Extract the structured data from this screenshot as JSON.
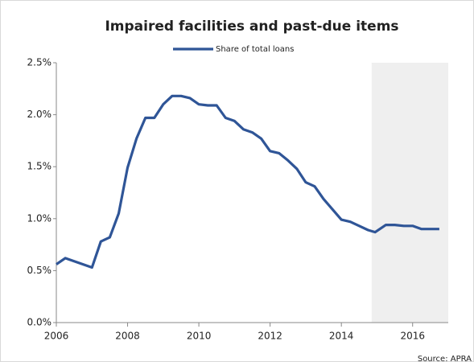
{
  "chart_data": {
    "type": "line",
    "title": "Impaired facilities and past-due items",
    "source": "Source: APRA",
    "x": [
      2006,
      2006.25,
      2007,
      2007.25,
      2007.5,
      2007.75,
      2008,
      2008.25,
      2008.5,
      2008.75,
      2009,
      2009.25,
      2009.5,
      2009.75,
      2010,
      2010.25,
      2010.5,
      2010.75,
      2011,
      2011.25,
      2011.5,
      2011.75,
      2012,
      2012.25,
      2012.5,
      2012.75,
      2013,
      2013.25,
      2013.5,
      2013.75,
      2014,
      2014.25,
      2014.5,
      2014.75,
      2014.95,
      2015.25,
      2015.5,
      2015.75,
      2016,
      2016.25,
      2016.75
    ],
    "series": [
      {
        "name": "Share of total loans",
        "color": "#2f5597",
        "values": [
          0.56,
          0.62,
          0.53,
          0.78,
          0.82,
          1.05,
          1.49,
          1.77,
          1.97,
          1.97,
          2.1,
          2.18,
          2.18,
          2.16,
          2.1,
          2.09,
          2.09,
          1.97,
          1.94,
          1.86,
          1.83,
          1.77,
          1.65,
          1.63,
          1.56,
          1.48,
          1.35,
          1.31,
          1.19,
          1.09,
          0.99,
          0.97,
          0.93,
          0.89,
          0.87,
          0.94,
          0.94,
          0.93,
          0.93,
          0.9,
          0.9
        ]
      }
    ],
    "xlim": [
      2006,
      2017
    ],
    "xticks": [
      2006,
      2008,
      2010,
      2012,
      2014,
      2016
    ],
    "ylim": [
      0,
      2.5
    ],
    "yticks": [
      {
        "value": 0,
        "label": "0.0%"
      },
      {
        "value": 0.5,
        "label": "0.5%"
      },
      {
        "value": 1,
        "label": "1.0%"
      },
      {
        "value": 1.5,
        "label": "1.5%"
      },
      {
        "value": 2,
        "label": "2.0%"
      },
      {
        "value": 2.5,
        "label": "2.5%"
      }
    ],
    "shaded_region": [
      2014.85,
      2017
    ],
    "shade_color": "#efefef",
    "legend": "top"
  }
}
